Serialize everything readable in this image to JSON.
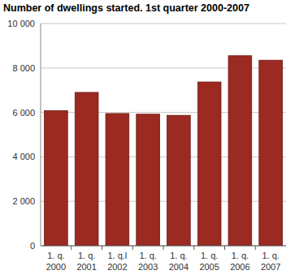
{
  "chart_data": {
    "type": "bar",
    "title": "Number of dwellings started. 1st quarter 2000-2007",
    "categories": [
      "1. q.\n2000",
      "1. q.\n2001",
      "1. q.l\n2002",
      "1. q.\n2003",
      "1. q.\n2004",
      "1. q.\n2005",
      "1. q.\n2006",
      "1. q.\n2007"
    ],
    "values": [
      6080,
      6900,
      5950,
      5920,
      5870,
      7370,
      8550,
      8350
    ],
    "color": "#9b2a23",
    "ylim": [
      0,
      10000
    ],
    "yticks": [
      0,
      {
        "value": 2000,
        "label": "2 000"
      },
      {
        "value": 4000,
        "label": "4 000"
      },
      {
        "value": 6000,
        "label": "6 000"
      },
      {
        "value": 8000,
        "label": "8 000"
      },
      {
        "value": 10000,
        "label": "10 000"
      }
    ],
    "grid": true
  }
}
